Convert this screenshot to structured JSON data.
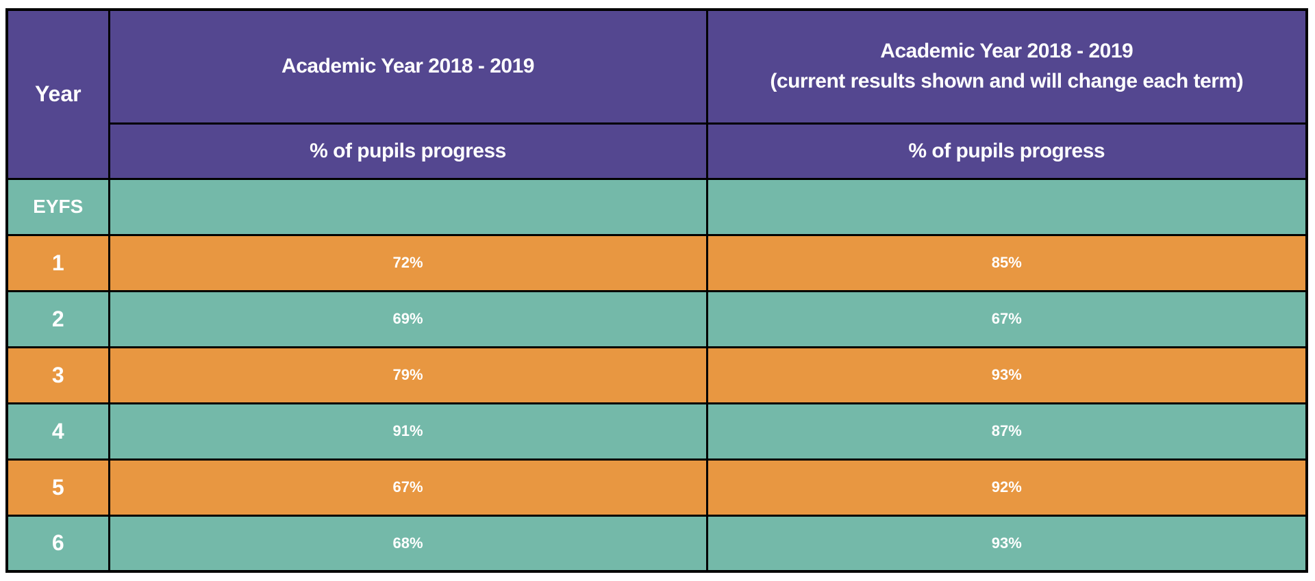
{
  "colors": {
    "header": "#544790",
    "teal": "#74B9A9",
    "orange": "#E89741",
    "border": "#000000",
    "text": "#ffffff"
  },
  "table": {
    "year_header": "Year",
    "col_a": {
      "title": "Academic Year 2018 -  2019",
      "subtitle": "% of pupils progress"
    },
    "col_b": {
      "title_line1": "Academic Year 2018 -  2019",
      "title_line2": "(current results shown and will change each term)",
      "subtitle": "% of pupils progress"
    },
    "rows": [
      {
        "year": "EYFS",
        "a": "",
        "b": "",
        "color": "teal"
      },
      {
        "year": "1",
        "a": "72%",
        "b": "85%",
        "color": "orange"
      },
      {
        "year": "2",
        "a": "69%",
        "b": "67%",
        "color": "teal"
      },
      {
        "year": "3",
        "a": "79%",
        "b": "93%",
        "color": "orange"
      },
      {
        "year": "4",
        "a": "91%",
        "b": "87%",
        "color": "teal"
      },
      {
        "year": "5",
        "a": "67%",
        "b": "92%",
        "color": "orange"
      },
      {
        "year": "6",
        "a": "68%",
        "b": "93%",
        "color": "teal"
      }
    ]
  }
}
